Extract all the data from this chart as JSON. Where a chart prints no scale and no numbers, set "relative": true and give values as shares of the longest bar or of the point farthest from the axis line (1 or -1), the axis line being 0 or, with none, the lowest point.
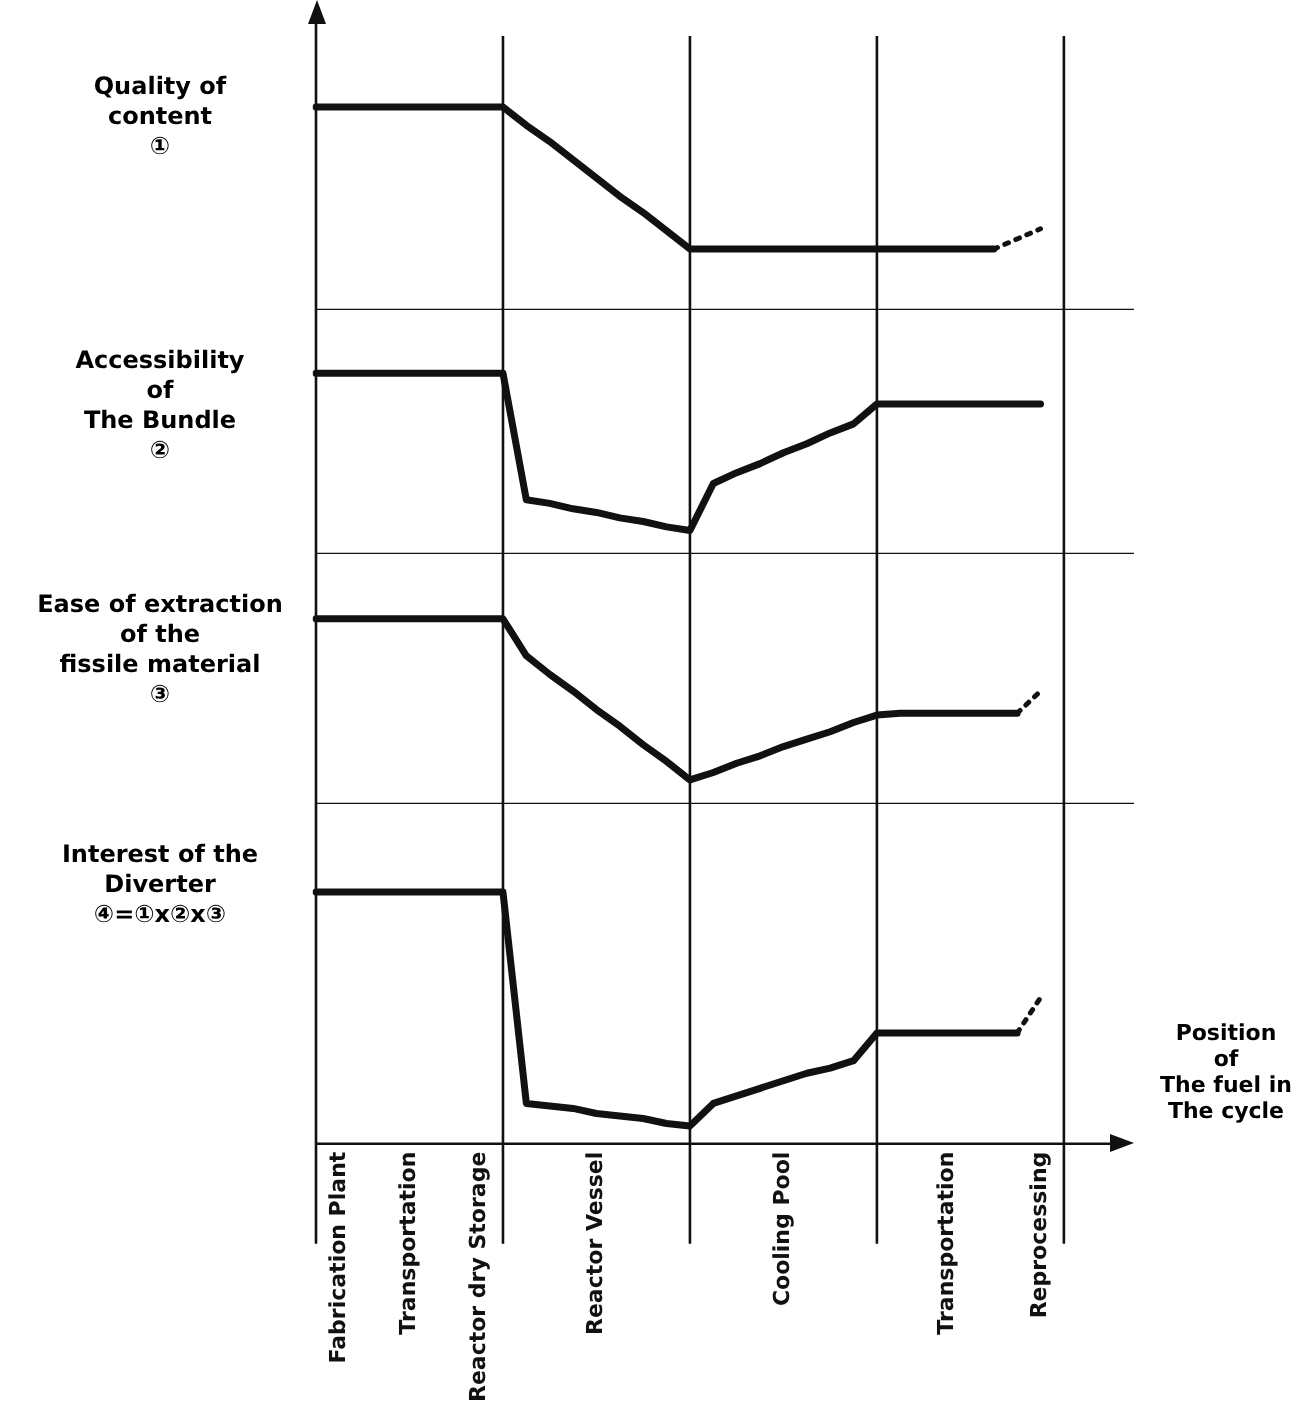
{
  "chart_data": [
    {
      "type": "line",
      "relative": true,
      "grid": "x",
      "ylabel": "Quality of\ncontent\n①",
      "categories": [
        null,
        null,
        null,
        null,
        null,
        null,
        null,
        null,
        null,
        null,
        null,
        null,
        null,
        null,
        null,
        null,
        null,
        null,
        null,
        null,
        null,
        null,
        null,
        null,
        null,
        null,
        null,
        null,
        null,
        null,
        null,
        null,
        null,
        null,
        null,
        null
      ],
      "series": [
        {
          "color": "#111111",
          "values": [
            1,
            1,
            1,
            1,
            1,
            1,
            1,
            1,
            1,
            0.91,
            0.83,
            0.74,
            0.65,
            0.56,
            0.48,
            0.39,
            0.3,
            0.3,
            0.3,
            0.3,
            0.3,
            0.3,
            0.3,
            0.3,
            0.3,
            0.3,
            0.3,
            0.3,
            0.3,
            0.3,
            null,
            null,
            null,
            null,
            null,
            null
          ]
        },
        {
          "color": "#111111",
          "line_style": "dotted",
          "values": [
            null,
            null,
            null,
            null,
            null,
            null,
            null,
            null,
            null,
            null,
            null,
            null,
            null,
            null,
            null,
            null,
            null,
            null,
            null,
            null,
            null,
            null,
            null,
            null,
            null,
            null,
            null,
            null,
            null,
            0.3,
            0.35,
            0.4,
            null,
            null,
            null,
            null
          ]
        }
      ]
    },
    {
      "type": "line",
      "relative": true,
      "grid": "x",
      "ylabel": "Accessibility\nof\nThe Bundle\n②",
      "categories": [
        null,
        null,
        null,
        null,
        null,
        null,
        null,
        null,
        null,
        null,
        null,
        null,
        null,
        null,
        null,
        null,
        null,
        null,
        null,
        null,
        null,
        null,
        null,
        null,
        null,
        null,
        null,
        null,
        null,
        null,
        null,
        null,
        null,
        null,
        null,
        null
      ],
      "series": [
        {
          "color": "#111111",
          "values": [
            1,
            1,
            1,
            1,
            1,
            1,
            1,
            1,
            1,
            0.3,
            0.28,
            0.25,
            0.23,
            0.2,
            0.18,
            0.15,
            0.13,
            0.39,
            0.45,
            0.5,
            0.56,
            0.61,
            0.67,
            0.72,
            0.83,
            0.83,
            0.83,
            0.83,
            0.83,
            0.83,
            0.83,
            0.83,
            null,
            null,
            null,
            null
          ]
        }
      ]
    },
    {
      "type": "line",
      "relative": true,
      "grid": "x",
      "ylabel": "Ease of extraction\nof the\nfissile material\n③",
      "categories": [
        null,
        null,
        null,
        null,
        null,
        null,
        null,
        null,
        null,
        null,
        null,
        null,
        null,
        null,
        null,
        null,
        null,
        null,
        null,
        null,
        null,
        null,
        null,
        null,
        null,
        null,
        null,
        null,
        null,
        null,
        null,
        null,
        null,
        null,
        null,
        null
      ],
      "series": [
        {
          "color": "#111111",
          "values": [
            1,
            1,
            1,
            1,
            1,
            1,
            1,
            1,
            1,
            0.8,
            0.7,
            0.61,
            0.51,
            0.42,
            0.32,
            0.23,
            0.13,
            0.17,
            0.22,
            0.26,
            0.31,
            0.35,
            0.39,
            0.44,
            0.48,
            0.49,
            0.49,
            0.49,
            0.49,
            0.49,
            0.49,
            null,
            null,
            null,
            null,
            null
          ]
        },
        {
          "color": "#111111",
          "line_style": "dotted",
          "values": [
            null,
            null,
            null,
            null,
            null,
            null,
            null,
            null,
            null,
            null,
            null,
            null,
            null,
            null,
            null,
            null,
            null,
            null,
            null,
            null,
            null,
            null,
            null,
            null,
            null,
            null,
            null,
            null,
            null,
            null,
            0.49,
            0.61,
            null,
            null,
            null,
            null
          ]
        }
      ]
    },
    {
      "type": "line",
      "relative": true,
      "grid": "x",
      "ylabel": "Interest of the\nDiverter\n④=①x②x③",
      "xlabel": "Position\nof\nThe fuel in\nThe cycle",
      "tick_labels": "x",
      "categories": [
        null,
        "Fabrication Plant",
        null,
        null,
        "Transportation",
        null,
        null,
        "Reactor dry Storage",
        null,
        null,
        null,
        null,
        "Reactor Vessel",
        null,
        null,
        null,
        null,
        null,
        null,
        null,
        "Cooling Pool",
        null,
        null,
        null,
        null,
        null,
        null,
        "Transportation",
        null,
        null,
        null,
        "Reprocessing",
        null,
        null,
        null,
        null
      ],
      "series": [
        {
          "color": "#111111",
          "values": [
            1,
            1,
            1,
            1,
            1,
            1,
            1,
            1,
            1,
            0.16,
            0.15,
            0.14,
            0.12,
            0.11,
            0.1,
            0.08,
            0.07,
            0.16,
            0.19,
            0.22,
            0.25,
            0.28,
            0.3,
            0.33,
            0.44,
            0.44,
            0.44,
            0.44,
            0.44,
            0.44,
            0.44,
            null,
            null,
            null,
            null,
            null
          ]
        },
        {
          "color": "#111111",
          "line_style": "dotted",
          "values": [
            null,
            null,
            null,
            null,
            null,
            null,
            null,
            null,
            null,
            null,
            null,
            null,
            null,
            null,
            null,
            null,
            null,
            null,
            null,
            null,
            null,
            null,
            null,
            null,
            null,
            null,
            null,
            null,
            null,
            null,
            0.44,
            0.58,
            null,
            null,
            null,
            null
          ]
        }
      ]
    }
  ]
}
